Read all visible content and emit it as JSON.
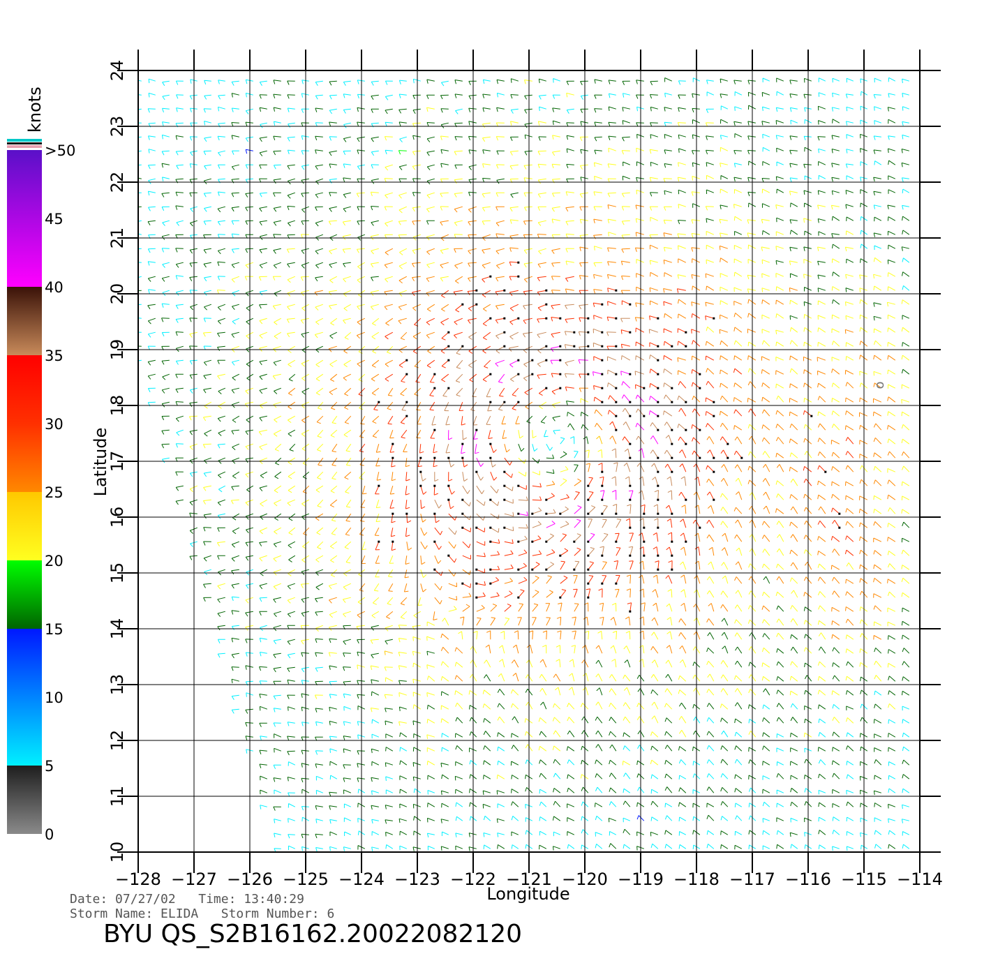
{
  "chart_data": {
    "type": "wind-vector-map",
    "xlabel": "Longitude",
    "ylabel": "Latitude",
    "xlim": [
      -128,
      -114
    ],
    "ylim": [
      10,
      24
    ],
    "x_ticks": [
      "−128",
      "−127",
      "−126",
      "−125",
      "−124",
      "−123",
      "−122",
      "−121",
      "−120",
      "−119",
      "−118",
      "−117",
      "−116",
      "−115",
      "−114"
    ],
    "y_ticks": [
      "10",
      "11",
      "12",
      "13",
      "14",
      "15",
      "16",
      "17",
      "18",
      "19",
      "20",
      "21",
      "22",
      "23",
      "24"
    ],
    "grid": true,
    "storm_center": {
      "lon": -120.5,
      "lat": 17.4
    },
    "vector_spacing_deg": 0.25,
    "colorbar": {
      "title": "knots",
      "labels": [
        ">50",
        "45",
        "40",
        "35",
        "30",
        "25",
        "20",
        "15",
        "10",
        "5",
        "0"
      ],
      "range": [
        0,
        50
      ],
      "stops": [
        {
          "knots": 0,
          "color": "#8a8a8a"
        },
        {
          "knots": 5,
          "color": "#1e1e1e"
        },
        {
          "knots": 5.01,
          "color": "#00f0ff"
        },
        {
          "knots": 15,
          "color": "#0018ff"
        },
        {
          "knots": 15.01,
          "color": "#006400"
        },
        {
          "knots": 20,
          "color": "#00ff00"
        },
        {
          "knots": 20.01,
          "color": "#ffff20"
        },
        {
          "knots": 25,
          "color": "#ffc800"
        },
        {
          "knots": 25.01,
          "color": "#ff8800"
        },
        {
          "knots": 30,
          "color": "#ff3000"
        },
        {
          "knots": 35,
          "color": "#ff0000"
        },
        {
          "knots": 35.01,
          "color": "#c88a5a"
        },
        {
          "knots": 40,
          "color": "#3a1208"
        },
        {
          "knots": 40.01,
          "color": "#ff00ff"
        },
        {
          "knots": 50,
          "color": "#5a10c8"
        }
      ]
    }
  },
  "info": {
    "date_line": "Date: 07/27/02   Time: 13:40:29",
    "storm_line": "Storm Name: ELIDA   Storm Number: 6",
    "product_title": "BYU QS_S2B16162.20022082120"
  },
  "map_marker": "o"
}
